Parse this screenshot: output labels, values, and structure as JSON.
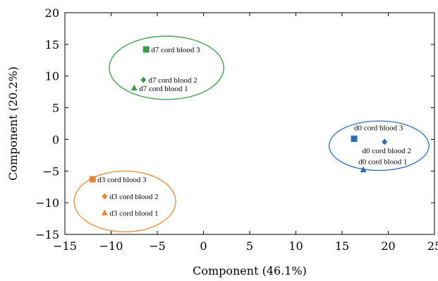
{
  "chart_data": {
    "type": "scatter",
    "title": "",
    "xlabel": "Component (46.1%)",
    "ylabel": "Component (20.2%)",
    "xlim": [
      -15,
      25
    ],
    "ylim": [
      -15,
      20
    ],
    "x_ticks": [
      -15,
      -10,
      -5,
      0,
      5,
      10,
      15,
      20,
      25
    ],
    "y_ticks": [
      -15,
      -10,
      -5,
      0,
      5,
      10,
      15,
      20
    ],
    "x_tick_labels": [
      "−15",
      "−10",
      "−5",
      "0",
      "5",
      "10",
      "15",
      "20",
      "25"
    ],
    "y_tick_labels": [
      "−15",
      "−10",
      "−5",
      "0",
      "5",
      "10",
      "15",
      "20"
    ],
    "grid": false,
    "groups": [
      {
        "color": "#3a9a4a",
        "ellipse": {
          "cx": -4,
          "cy": 11.3,
          "rx": 6.2,
          "ry": 5.0
        },
        "points": [
          {
            "label": "d7 cord blood 3",
            "x": -6.2,
            "y": 14.2,
            "marker": "square"
          },
          {
            "label": "d7 cord blood 2",
            "x": -6.5,
            "y": 9.4,
            "marker": "diamond"
          },
          {
            "label": "d7 cord blood 1",
            "x": -7.5,
            "y": 8.1,
            "marker": "triangle"
          }
        ]
      },
      {
        "color": "#2f6eb5",
        "ellipse": {
          "cx": 19.0,
          "cy": -1.0,
          "rx": 5.4,
          "ry": 3.9
        },
        "points": [
          {
            "label": "d0 cord blood 3",
            "x": 16.3,
            "y": 0.1,
            "marker": "square"
          },
          {
            "label": "d0 cord blood 2",
            "x": 19.6,
            "y": -0.4,
            "marker": "diamond"
          },
          {
            "label": "d0 cord blood 1",
            "x": 17.3,
            "y": -4.8,
            "marker": "triangle"
          }
        ]
      },
      {
        "color": "#e08a3c",
        "ellipse": {
          "cx": -8.5,
          "cy": -9.8,
          "rx": 5.5,
          "ry": 4.8
        },
        "points": [
          {
            "label": "d3 cord blood 3",
            "x": -12.0,
            "y": -6.3,
            "marker": "square"
          },
          {
            "label": "d3 cord blood 2",
            "x": -10.7,
            "y": -9.0,
            "marker": "diamond"
          },
          {
            "label": "d3 cord blood 1",
            "x": -10.7,
            "y": -11.6,
            "marker": "triangle"
          }
        ]
      }
    ]
  }
}
